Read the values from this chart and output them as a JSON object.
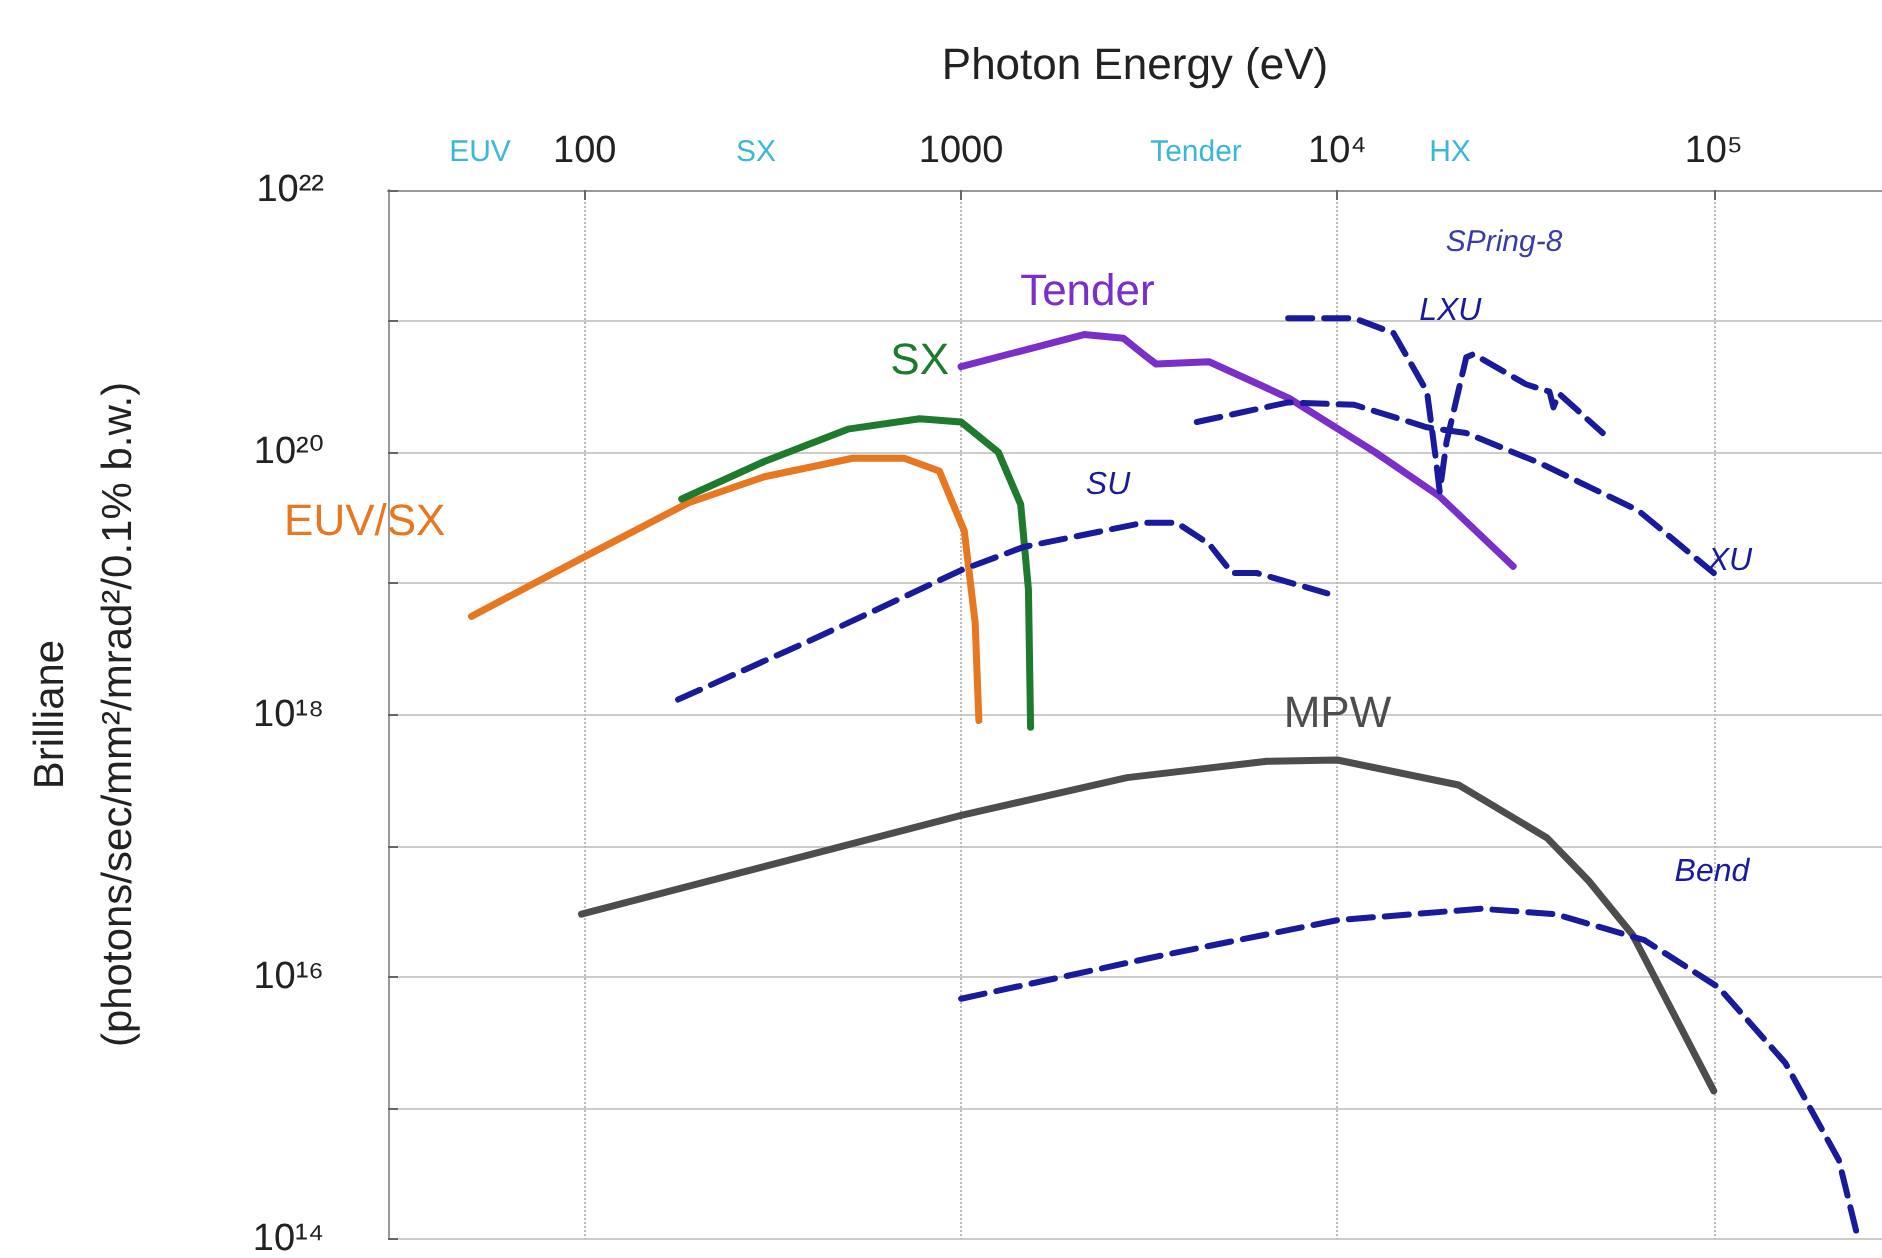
{
  "chart_data": {
    "type": "line",
    "xlabel": "Photon Energy (eV)",
    "ylabel": "Brilliane\n(photons/sec/mm²/mrad²/0.1% b.w.)",
    "log": "xy",
    "grid": true,
    "marker": "none",
    "xlim": [
      30,
      280000
    ],
    "xticks": [
      100,
      1000,
      {
        "value": 10000,
        "label": "10⁴"
      },
      {
        "value": 100000,
        "label": "10⁵"
      }
    ],
    "ylim": [
      100000000000000.0,
      1e+22
    ],
    "yticks": [
      {
        "value": 100000000000000.0,
        "label": "10¹⁴"
      },
      {
        "value": 1000000000000000.0,
        "label": null
      },
      {
        "value": 1e+16,
        "label": "10¹⁶"
      },
      {
        "value": 1e+17,
        "label": null
      },
      {
        "value": 1e+18,
        "label": "10¹⁸"
      },
      {
        "value": 1e+19,
        "label": null
      },
      {
        "value": 1e+20,
        "label": "10²⁰"
      },
      {
        "value": 1e+21,
        "label": null
      },
      {
        "value": 1e+22,
        "label": "10²²"
      }
    ],
    "series": [
      {
        "name": "EUV/SX",
        "color": "#e87722",
        "line_style": "solid",
        "x": [
          50,
          100,
          188,
          300,
          515,
          706,
          875,
          1020,
          1090,
          1115
        ],
        "values": [
          5.6e+18,
          1.6e+19,
          4.1e+19,
          6.5e+19,
          9e+19,
          9e+19,
          7.2e+19,
          2.5e+19,
          5e+18,
          9e+17
        ]
      },
      {
        "name": "SX",
        "color": "#1e7b2e",
        "line_style": "solid",
        "x": [
          181,
          300,
          500,
          776,
          1000,
          1256,
          1440,
          1510,
          1530
        ],
        "values": [
          4.4e+19,
          8.5e+19,
          1.5e+20,
          1.8e+20,
          1.7e+20,
          1e+20,
          4e+19,
          9e+18,
          8e+17
        ]
      },
      {
        "name": "Tender",
        "color": "#7b2fc9",
        "line_style": "solid",
        "x": [
          1000,
          2120,
          2700,
          3050,
          3300,
          4560,
          7400,
          12600,
          18700,
          29300
        ],
        "values": [
          4.5e+20,
          7.9e+20,
          7.4e+20,
          5.6e+20,
          4.7e+20,
          4.9e+20,
          2.6e+20,
          1e+20,
          4.6e+19,
          1.35e+19
        ]
      },
      {
        "name": "MPW",
        "color": "#4d4d4d",
        "line_style": "solid",
        "x": [
          98,
          1000,
          2760,
          6500,
          10000,
          21000,
          36000,
          46500,
          60800,
          100000
        ],
        "values": [
          3e+16,
          1.7e+17,
          3.3e+17,
          4.4e+17,
          4.5e+17,
          2.9e+17,
          1.15e+17,
          5.4e+16,
          2.1e+16,
          1350000000000000.0
        ]
      },
      {
        "name": "SU",
        "color": "#1a1a9c",
        "line_style": "dashed",
        "x": [
          177,
          400,
          1000,
          1470,
          3050,
          3740,
          4560,
          5250,
          6100,
          9400
        ],
        "values": [
          1.3e+18,
          3.7e+18,
          1.26e+19,
          1.9e+19,
          2.9e+19,
          2.9e+19,
          2e+19,
          1.2e+19,
          1.2e+19,
          8.4e+18
        ]
      },
      {
        "name": "XU",
        "color": "#1a1a9c",
        "line_style": "dashed",
        "x": [
          4230,
          7400,
          11100,
          17300,
          22000,
          34400,
          63000,
          100000
        ],
        "values": [
          1.7e+20,
          2.4e+20,
          2.3e+20,
          1.55e+20,
          1.4e+20,
          8.3e+19,
          3.6e+19,
          1.2e+19
        ]
      },
      {
        "name": "LXU",
        "color": "#1a1a9c",
        "line_style": "dashed",
        "x": [
          7400,
          11100,
          14100,
          17300,
          18300,
          18700,
          19500,
          22000,
          23000,
          31700,
          36600,
          37500,
          38800,
          50700
        ],
        "values": [
          1.05e+21,
          1.05e+21,
          8.1e+20,
          2.9e+20,
          8.5e+19,
          5e+19,
          1.2e+20,
          5.3e+20,
          5.6e+20,
          3.3e+20,
          2.9e+20,
          2.2e+20,
          2.8e+20,
          1.4e+20
        ]
      },
      {
        "name": "Bend",
        "color": "#1a1a9c",
        "line_style": "dashed",
        "x": [
          1000,
          3400,
          10000,
          24000,
          38000,
          65500,
          103000,
          155000,
          215000,
          240000
        ],
        "values": [
          6800000000000000.0,
          1.45e+16,
          2.7e+16,
          3.3e+16,
          3e+16,
          1.9e+16,
          8300000000000000.0,
          2200000000000000.0,
          400000000000000.0,
          110000000000000.0
        ]
      }
    ],
    "annotations": [
      "EUV",
      "SX",
      "Tender",
      "HX",
      "SPring-8"
    ]
  }
}
